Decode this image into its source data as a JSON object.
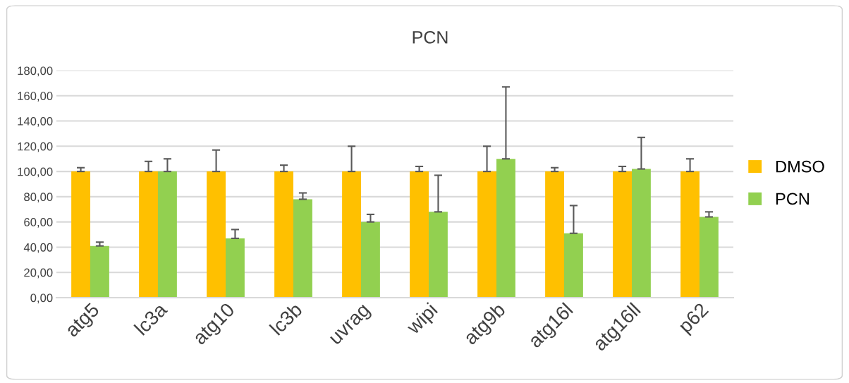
{
  "chart_data": {
    "type": "bar",
    "title": "PCN",
    "categories": [
      "atg5",
      "lc3a",
      "atg10",
      "lc3b",
      "uvrag",
      "wipi",
      "atg9b",
      "atg16l",
      "atg16ll",
      "p62"
    ],
    "series": [
      {
        "name": "DMSO",
        "color": "#ffc000",
        "values": [
          100,
          100,
          100,
          100,
          100,
          100,
          100,
          100,
          100,
          100
        ],
        "errors": [
          [
            100,
            103
          ],
          [
            100,
            108
          ],
          [
            100,
            117
          ],
          [
            100,
            105
          ],
          [
            100,
            120
          ],
          [
            100,
            104
          ],
          [
            100,
            120
          ],
          [
            100,
            103
          ],
          [
            100,
            104
          ],
          [
            100,
            110
          ]
        ]
      },
      {
        "name": "PCN",
        "color": "#92d050",
        "values": [
          41,
          100,
          47,
          78,
          60,
          68,
          110,
          51,
          102,
          64
        ],
        "errors": [
          [
            41,
            44
          ],
          [
            100,
            110
          ],
          [
            47,
            54
          ],
          [
            78,
            83
          ],
          [
            60,
            66
          ],
          [
            68,
            97
          ],
          [
            110,
            167
          ],
          [
            51,
            73
          ],
          [
            102,
            127
          ],
          [
            64,
            68
          ]
        ]
      }
    ],
    "ylim": [
      0,
      180
    ],
    "yticks": [
      {
        "value": 0,
        "label": "0,00"
      },
      {
        "value": 20,
        "label": "20,00"
      },
      {
        "value": 40,
        "label": "40,00"
      },
      {
        "value": 60,
        "label": "60,00"
      },
      {
        "value": 80,
        "label": "80,00"
      },
      {
        "value": 100,
        "label": "100,00"
      },
      {
        "value": 120,
        "label": "120,00"
      },
      {
        "value": 140,
        "label": "140,00"
      },
      {
        "value": 160,
        "label": "160,00"
      },
      {
        "value": 180,
        "label": "180,00"
      }
    ],
    "grid": "y",
    "legend": "right"
  }
}
